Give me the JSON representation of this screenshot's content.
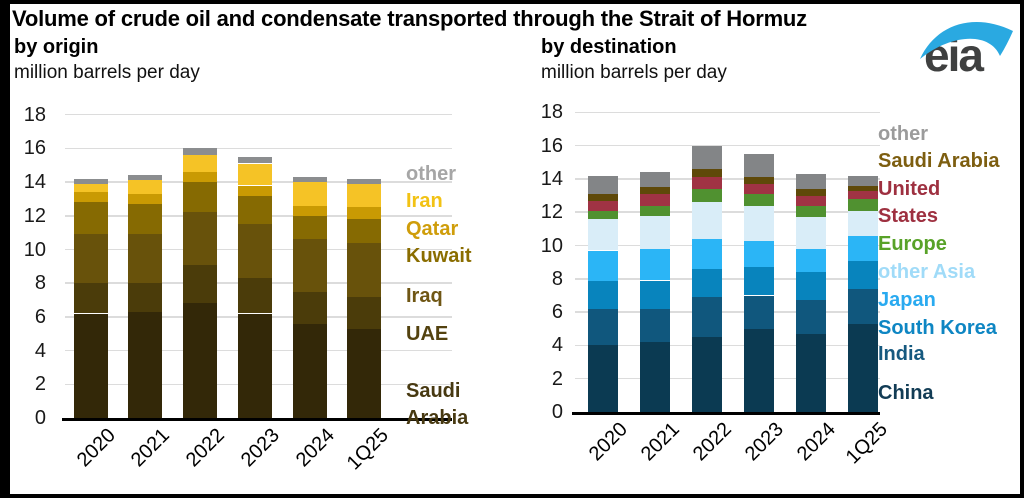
{
  "header": {
    "title": "Volume of crude oil and condensate transported through the Strait of Hormuz",
    "logo_text": "eia"
  },
  "chart_data": [
    {
      "type": "bar",
      "stacked": true,
      "title": "by origin",
      "ylabel": "million barrels per day",
      "ylim": [
        0,
        18
      ],
      "y_ticks": [
        0,
        2,
        4,
        6,
        8,
        10,
        12,
        14,
        16,
        18
      ],
      "grid": "horizontal",
      "legend_position": "right",
      "categories": [
        "2020",
        "2021",
        "2022",
        "2023",
        "2024",
        "1Q25"
      ],
      "totals": [
        14.2,
        14.4,
        16.0,
        15.5,
        14.3,
        14.2
      ],
      "series": [
        {
          "name": "Saudi Arabia",
          "color": "#332808",
          "legend_color": "#473911",
          "legend_lines": [
            "Saudi",
            "Arabia"
          ],
          "values": [
            6.2,
            6.3,
            6.8,
            6.2,
            5.6,
            5.3
          ]
        },
        {
          "name": "UAE",
          "color": "#4b3c0a",
          "legend_color": "#53420f",
          "values": [
            1.8,
            1.7,
            2.3,
            2.1,
            1.9,
            1.9
          ]
        },
        {
          "name": "Iraq",
          "color": "#68520b",
          "legend_color": "#6f5614",
          "values": [
            2.9,
            2.9,
            3.1,
            3.2,
            3.1,
            3.2
          ]
        },
        {
          "name": "Kuwait",
          "color": "#866a02",
          "legend_color": "#8a6d00",
          "values": [
            1.9,
            1.8,
            1.8,
            1.7,
            1.4,
            1.4
          ]
        },
        {
          "name": "Qatar",
          "color": "#c99a03",
          "legend_color": "#cf9d0a",
          "values": [
            0.6,
            0.6,
            0.6,
            0.6,
            0.6,
            0.7
          ]
        },
        {
          "name": "Iran",
          "color": "#f5c326",
          "legend_color": "#f2c214",
          "values": [
            0.5,
            0.8,
            1.0,
            1.3,
            1.4,
            1.4
          ]
        },
        {
          "name": "other",
          "color": "#8b8d8f",
          "legend_color": "#a6a6a6",
          "values": [
            0.3,
            0.3,
            0.4,
            0.4,
            0.3,
            0.3
          ]
        }
      ]
    },
    {
      "type": "bar",
      "stacked": true,
      "title": "by destination",
      "ylabel": "million barrels per day",
      "ylim": [
        0,
        18
      ],
      "y_ticks": [
        0,
        2,
        4,
        6,
        8,
        10,
        12,
        14,
        16,
        18
      ],
      "grid": "horizontal",
      "legend_position": "right",
      "categories": [
        "2020",
        "2021",
        "2022",
        "2023",
        "2024",
        "1Q25"
      ],
      "totals": [
        14.2,
        14.4,
        16.0,
        15.5,
        14.3,
        14.2
      ],
      "series": [
        {
          "name": "China",
          "color": "#0b3a52",
          "legend_color": "#123c55",
          "values": [
            4.0,
            4.2,
            4.5,
            5.0,
            4.7,
            5.3
          ]
        },
        {
          "name": "India",
          "color": "#10577d",
          "legend_color": "#16597f",
          "values": [
            2.2,
            2.0,
            2.4,
            2.0,
            2.0,
            2.1
          ]
        },
        {
          "name": "South Korea",
          "color": "#0884bd",
          "legend_color": "#0e86c3",
          "values": [
            1.7,
            1.7,
            1.7,
            1.7,
            1.7,
            1.7
          ]
        },
        {
          "name": "Japan",
          "color": "#2bb5f6",
          "legend_color": "#29aaf0",
          "values": [
            1.8,
            1.9,
            1.8,
            1.6,
            1.4,
            1.5
          ]
        },
        {
          "name": "other Asia",
          "color": "#d9edf8",
          "legend_color": "#a0dbf8",
          "values": [
            1.9,
            2.0,
            2.2,
            2.1,
            1.9,
            1.5
          ]
        },
        {
          "name": "Europe",
          "color": "#509130",
          "legend_color": "#58a228",
          "values": [
            0.5,
            0.6,
            0.8,
            0.7,
            0.7,
            0.7
          ]
        },
        {
          "name": "United States",
          "color": "#a03344",
          "legend_color": "#9e3040",
          "legend_lines": [
            "United",
            "States"
          ],
          "values": [
            0.6,
            0.7,
            0.7,
            0.6,
            0.6,
            0.5
          ]
        },
        {
          "name": "Saudi Arabia",
          "color": "#5f4909",
          "legend_color": "#7d5e10",
          "values": [
            0.4,
            0.4,
            0.5,
            0.4,
            0.4,
            0.3
          ]
        },
        {
          "name": "other",
          "color": "#838587",
          "legend_color": "#9b9b9b",
          "values": [
            1.1,
            0.9,
            1.4,
            1.4,
            0.9,
            0.6
          ]
        }
      ]
    }
  ]
}
